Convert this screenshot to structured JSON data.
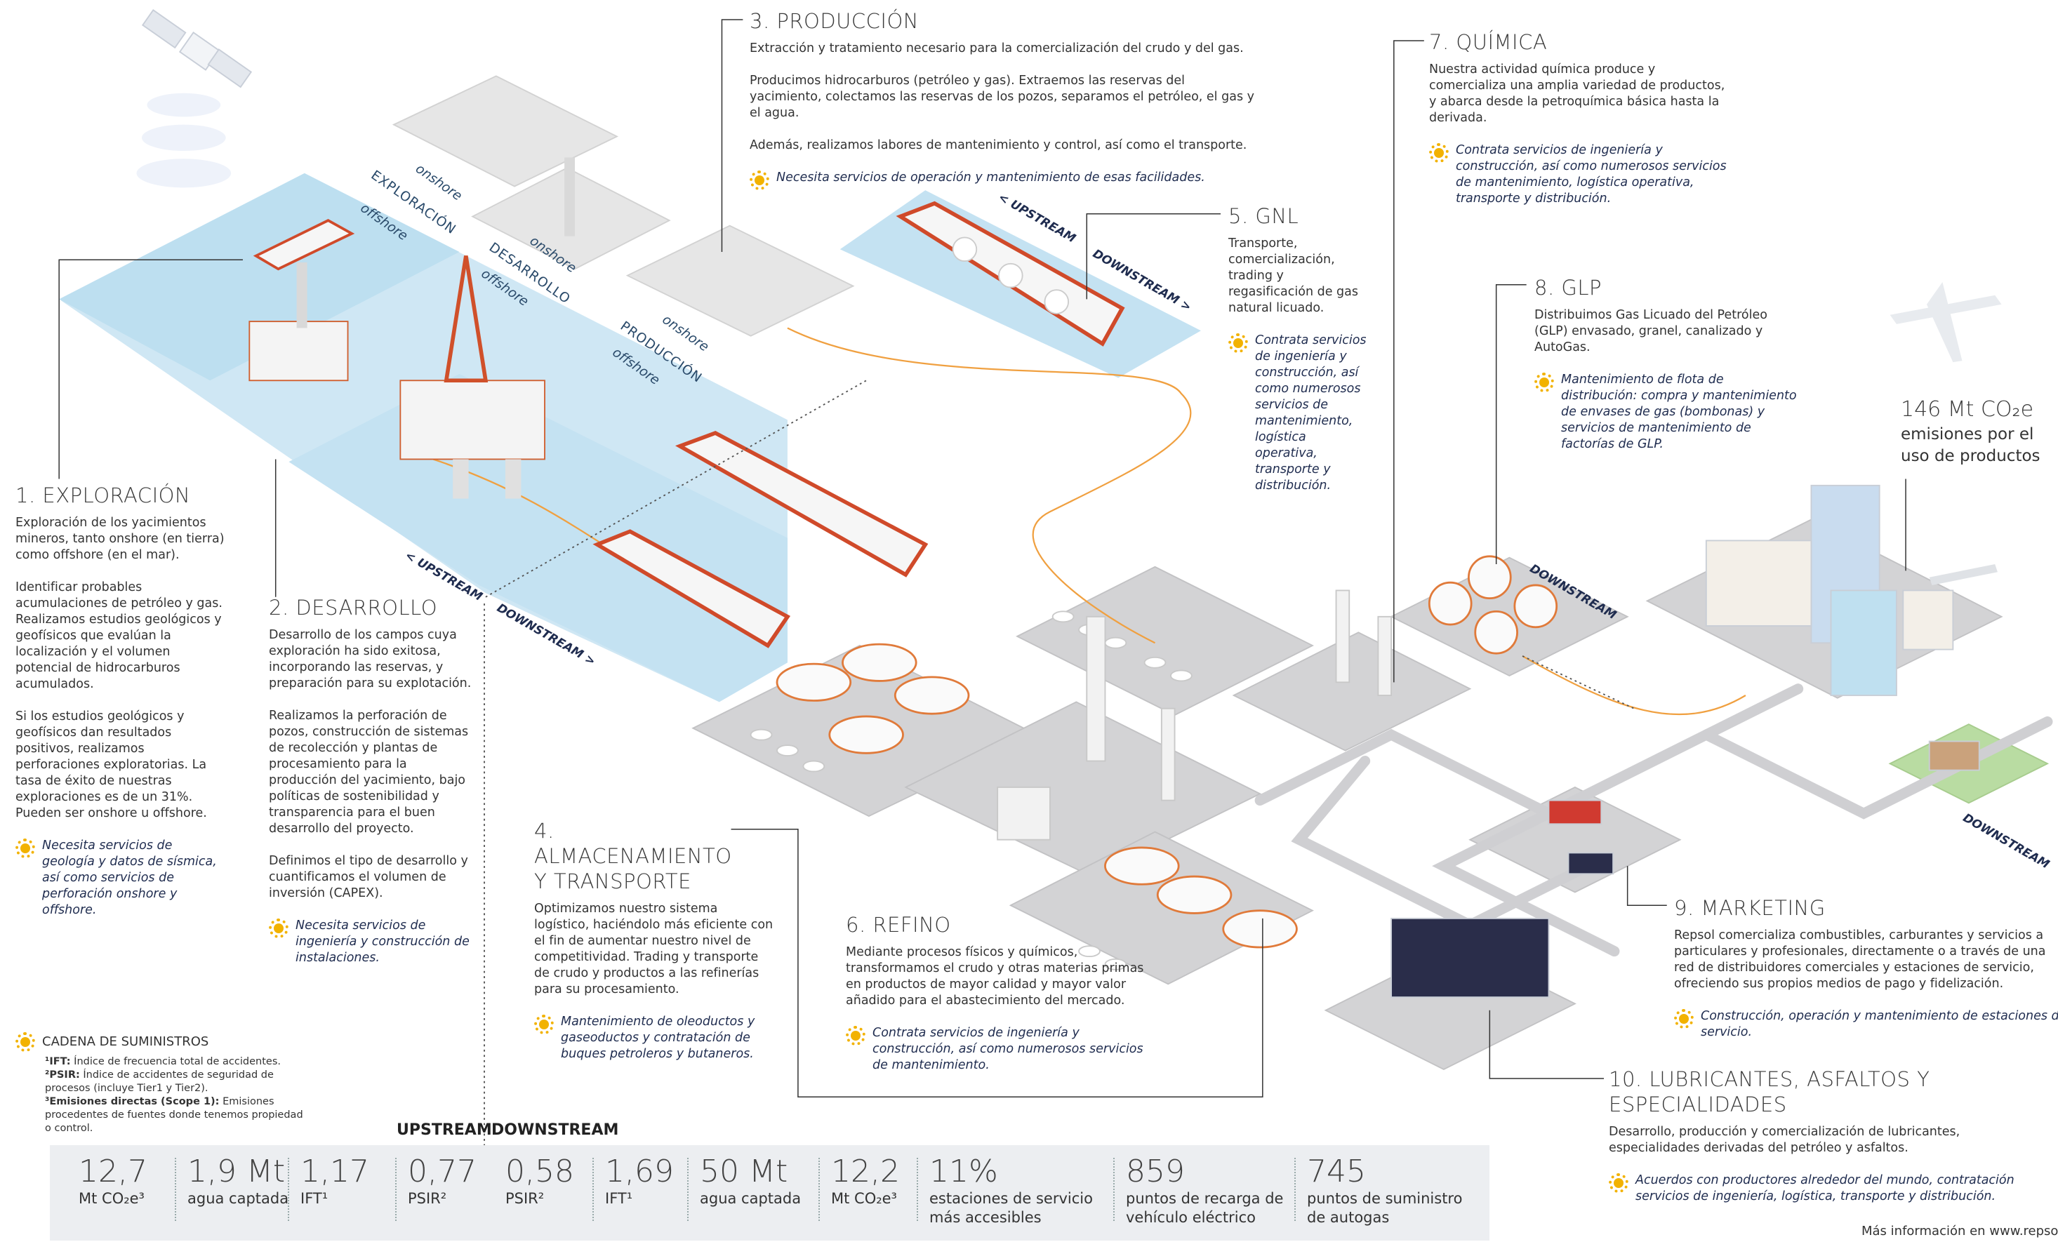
{
  "sections": [
    {
      "title": "1. EXPLORACIÓN",
      "paragraphs": [
        "Exploración de los yacimientos mineros, tanto onshore (en tierra) como offshore (en el mar).",
        "Identificar probables acumulaciones de petróleo y gas. Realizamos estudios geológicos y geofísicos que evalúan la localización y el volumen potencial de hidrocarburos acumulados.",
        "Si los estudios geológicos y geofísicos dan resultados positivos, realizamos perforaciones exploratorias. La tasa de éxito de nuestras exploraciones es de un 31%. Pueden ser onshore u offshore."
      ],
      "note": "Necesita servicios de geología y datos de sísmica, así como servicios de perforación onshore y offshore."
    },
    {
      "title": "2. DESARROLLO",
      "paragraphs": [
        "Desarrollo de los campos cuya exploración ha sido exitosa, incorporando las reservas, y preparación para su explotación.",
        "Realizamos la perforación de pozos, construcción de sistemas de recolección y plantas de procesamiento para la producción del yacimiento, bajo políticas de sostenibilidad y transparencia para el buen desarrollo del proyecto.",
        "Definimos el tipo de desarrollo y cuantificamos el volumen de inversión (CAPEX)."
      ],
      "note": "Necesita servicios de ingeniería y construcción de instalaciones."
    },
    {
      "title": "3. PRODUCCIÓN",
      "paragraphs": [
        "Extracción y tratamiento necesario para la comercialización del crudo y del gas.",
        "Producimos hidrocarburos (petróleo y gas). Extraemos las reservas del yacimiento, colectamos las reservas de los pozos, separamos el petróleo, el gas y el agua.",
        "Además, realizamos labores de mantenimiento y control, así como el transporte."
      ],
      "note": "Necesita servicios de operación y mantenimiento de esas facilidades."
    },
    {
      "title": "4. ALMACENAMIENTO Y TRANSPORTE",
      "paragraphs": [
        "Optimizamos nuestro sistema logístico, haciéndolo más eficiente con el fin de aumentar nuestro nivel de competitividad. Trading y transporte de crudo y productos a las refinerías para su procesamiento."
      ],
      "note": "Mantenimiento de oleoductos y gaseoductos y contratación de buques petroleros y butaneros."
    },
    {
      "title": "5. GNL",
      "paragraphs": [
        "Transporte, comercialización, trading y regasificación de gas natural licuado."
      ],
      "note": "Contrata servicios de ingeniería y construcción, así como numerosos servicios de mantenimiento, logística operativa, transporte y distribución."
    },
    {
      "title": "6. REFINO",
      "paragraphs": [
        "Mediante procesos físicos y químicos, transformamos el crudo y otras materias primas en productos de mayor calidad y mayor valor añadido para el abastecimiento del mercado."
      ],
      "note": "Contrata servicios de ingeniería y construcción, así como numerosos servicios de mantenimiento."
    },
    {
      "title": "7. QUÍMICA",
      "paragraphs": [
        "Nuestra actividad química produce y comercializa una amplia variedad de productos, y abarca desde la petroquímica básica hasta la derivada."
      ],
      "note": "Contrata servicios de ingeniería y construcción, así como numerosos servicios de mantenimiento, logística operativa, transporte y distribución."
    },
    {
      "title": "8. GLP",
      "paragraphs": [
        "Distribuimos Gas Licuado del Petróleo (GLP) envasado, granel, canalizado y AutoGas."
      ],
      "note": "Mantenimiento de flota de distribución: compra y mantenimiento de envases de gas (bombonas) y servicios de mantenimiento de factorías de GLP."
    },
    {
      "title": "9. MARKETING",
      "paragraphs": [
        "Repsol comercializa combustibles, carburantes y servicios a particulares y profesionales, directamente o a través de una red de distribuidores comerciales y estaciones de servicio, ofreciendo sus propios medios de pago y fidelización."
      ],
      "note": "Construcción, operación y mantenimiento de estaciones de servicio."
    },
    {
      "title": "10. LUBRICANTES, ASFALTOS Y ESPECIALIDADES",
      "paragraphs": [
        "Desarrollo, producción y comercialización de lubricantes, especialidades derivadas del petróleo y asfaltos."
      ],
      "note": "Acuerdos con productores alrededor del mundo, contratación servicios de ingeniería, logística, transporte y distribución."
    }
  ],
  "emissions": {
    "value": "146 Mt CO₂e",
    "label": "emisiones por el uso de productos"
  },
  "map_labels": [
    "EXPLORACIÓN",
    "offshore",
    "onshore",
    "DESARROLLO",
    "offshore",
    "onshore",
    "PRODUCCIÓN",
    "offshore",
    "onshore",
    "< UPSTREAM",
    "DOWNSTREAM >",
    "< UPSTREAM",
    "DOWNSTREAM >",
    "DOWNSTREAM",
    "DOWNSTREAM"
  ],
  "legend": {
    "title": "CADENA DE SUMINISTROS",
    "footnotes": [
      {
        "term": "¹IFT:",
        "text": "Índice de frecuencia total de accidentes."
      },
      {
        "term": "²PSIR:",
        "text": "Índice de accidentes de seguridad de procesos (incluye Tier1 y Tier2)."
      },
      {
        "term": "³Emisiones directas (Scope 1):",
        "text": "Emisiones procedentes de fuentes donde tenemos propiedad o control."
      }
    ]
  },
  "stats": {
    "upstream": {
      "label": "UPSTREAM",
      "items": [
        {
          "value": "12,7",
          "label": "Mt CO₂e³"
        },
        {
          "value": "1,9 Mt",
          "label": "agua captada"
        },
        {
          "value": "1,17",
          "label": "IFT¹"
        },
        {
          "value": "0,77",
          "label": "PSIR²"
        }
      ]
    },
    "downstream": {
      "label": "DOWNSTREAM",
      "items": [
        {
          "value": "0,58",
          "label": "PSIR²"
        },
        {
          "value": "1,69",
          "label": "IFT¹"
        },
        {
          "value": "50 Mt",
          "label": "agua captada"
        },
        {
          "value": "12,2",
          "label": "Mt CO₂e³"
        },
        {
          "value": "11%",
          "label": "estaciones de servicio más accesibles"
        },
        {
          "value": "859",
          "label": "puntos de recarga de vehículo eléctrico"
        },
        {
          "value": "745",
          "label": "puntos de suministro de autogas"
        }
      ]
    }
  },
  "footer": "Más información en www.repsol"
}
